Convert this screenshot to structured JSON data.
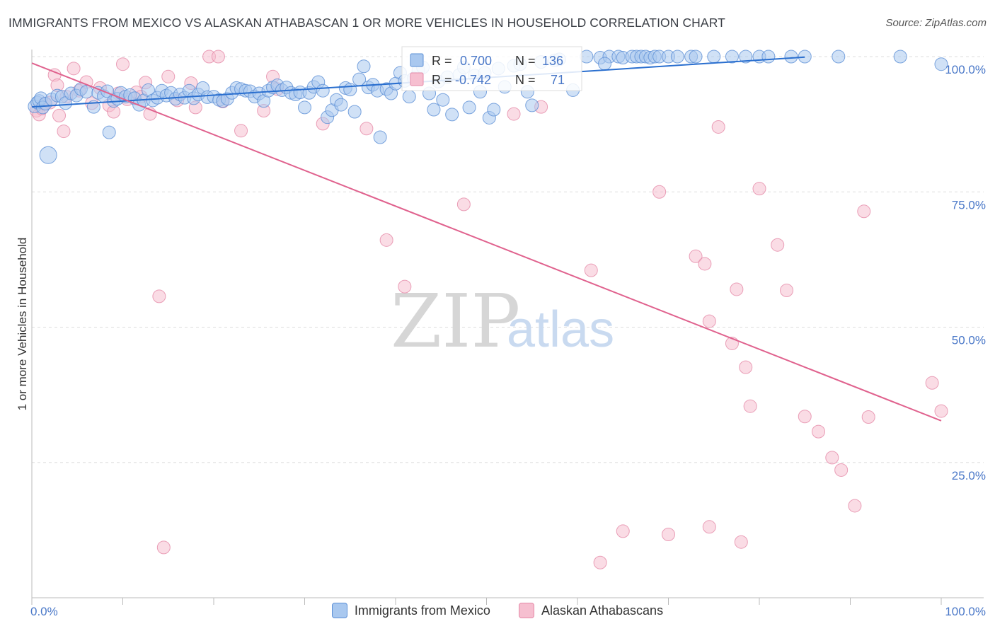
{
  "title": "IMMIGRANTS FROM MEXICO VS ALASKAN ATHABASCAN 1 OR MORE VEHICLES IN HOUSEHOLD CORRELATION CHART",
  "source": "Source: ZipAtlas.com",
  "watermark": {
    "zip": "ZIP",
    "atlas": "atlas"
  },
  "legend_box": {
    "r_label": "R =",
    "n_label": "N =",
    "rows": [
      {
        "r": "0.700",
        "n": "136"
      },
      {
        "r": "-0.742",
        "n": "71"
      }
    ]
  },
  "colors": {
    "blue_fill": "#a9c8ef",
    "blue_stroke": "#5b8fd6",
    "blue_line": "#2a6fcf",
    "pink_fill": "#f6bfd0",
    "pink_stroke": "#e58aa8",
    "pink_line": "#e0628e",
    "grid": "#dddddd",
    "tick_text": "#4a78c8"
  },
  "chart_data": {
    "type": "scatter",
    "title": "IMMIGRANTS FROM MEXICO VS ALASKAN ATHABASCAN 1 OR MORE VEHICLES IN HOUSEHOLD CORRELATION CHART",
    "xlabel": "",
    "ylabel": "1 or more Vehicles in Household",
    "xlim": [
      0,
      100
    ],
    "ylim": [
      0,
      100
    ],
    "x_tick_labels": [
      "0.0%",
      "100.0%"
    ],
    "y_ticks": [
      {
        "value": 25,
        "label": "25.0%"
      },
      {
        "value": 50,
        "label": "50.0%"
      },
      {
        "value": 75,
        "label": "75.0%"
      },
      {
        "value": 100,
        "label": "100.0%"
      }
    ],
    "legend_position": "top-center",
    "series": [
      {
        "name": "Immigrants from Mexico",
        "color": "blue",
        "r": 0.7,
        "n": 136,
        "trend": {
          "x": [
            0,
            85
          ],
          "y": [
            90.7,
            99.9
          ]
        },
        "points": [
          [
            0.3,
            90.8
          ],
          [
            0.6,
            91.5
          ],
          [
            0.8,
            91.8
          ],
          [
            1.0,
            92.3
          ],
          [
            1.2,
            90.6
          ],
          [
            1.5,
            91.3
          ],
          [
            1.8,
            81.8
          ],
          [
            2.2,
            92.1
          ],
          [
            2.8,
            92.8
          ],
          [
            3.3,
            92.6
          ],
          [
            3.7,
            91.4
          ],
          [
            4.3,
            93.2
          ],
          [
            4.9,
            92.8
          ],
          [
            5.4,
            94.0
          ],
          [
            6.0,
            93.5
          ],
          [
            6.8,
            90.7
          ],
          [
            7.3,
            93.3
          ],
          [
            7.9,
            92.7
          ],
          [
            8.3,
            93.6
          ],
          [
            8.5,
            86.0
          ],
          [
            9.0,
            91.8
          ],
          [
            9.4,
            92.2
          ],
          [
            9.8,
            93.3
          ],
          [
            10.3,
            92.6
          ],
          [
            10.8,
            92.9
          ],
          [
            11.3,
            92.3
          ],
          [
            11.8,
            91.1
          ],
          [
            12.3,
            91.9
          ],
          [
            12.8,
            93.8
          ],
          [
            13.3,
            91.9
          ],
          [
            13.8,
            92.4
          ],
          [
            14.3,
            93.7
          ],
          [
            14.8,
            92.8
          ],
          [
            15.3,
            93.3
          ],
          [
            15.8,
            92.2
          ],
          [
            16.3,
            93.0
          ],
          [
            16.8,
            92.4
          ],
          [
            17.3,
            93.7
          ],
          [
            17.8,
            92.3
          ],
          [
            18.3,
            93.0
          ],
          [
            18.8,
            94.2
          ],
          [
            19.3,
            92.5
          ],
          [
            20.0,
            92.6
          ],
          [
            20.6,
            92.0
          ],
          [
            21.0,
            91.8
          ],
          [
            21.5,
            92.2
          ],
          [
            22.0,
            93.3
          ],
          [
            22.5,
            94.2
          ],
          [
            23.0,
            94.0
          ],
          [
            23.5,
            93.7
          ],
          [
            24.0,
            93.6
          ],
          [
            24.5,
            92.6
          ],
          [
            25.0,
            93.2
          ],
          [
            25.5,
            91.8
          ],
          [
            26.0,
            93.7
          ],
          [
            26.5,
            94.3
          ],
          [
            27.0,
            94.7
          ],
          [
            27.5,
            93.8
          ],
          [
            28.0,
            94.3
          ],
          [
            28.5,
            93.3
          ],
          [
            29.0,
            93.0
          ],
          [
            29.5,
            93.4
          ],
          [
            30.0,
            90.6
          ],
          [
            30.5,
            93.3
          ],
          [
            31.0,
            94.4
          ],
          [
            31.5,
            95.3
          ],
          [
            32.0,
            93.7
          ],
          [
            32.5,
            88.8
          ],
          [
            33.0,
            90.1
          ],
          [
            33.5,
            92.0
          ],
          [
            34.0,
            91.1
          ],
          [
            34.5,
            94.2
          ],
          [
            35.0,
            93.9
          ],
          [
            35.5,
            89.8
          ],
          [
            36.0,
            95.8
          ],
          [
            36.5,
            98.2
          ],
          [
            37.0,
            94.3
          ],
          [
            37.5,
            94.8
          ],
          [
            38.0,
            93.7
          ],
          [
            38.3,
            85.1
          ],
          [
            39.0,
            94.0
          ],
          [
            39.5,
            93.2
          ],
          [
            40.0,
            95.0
          ],
          [
            40.5,
            97.0
          ],
          [
            41.0,
            95.5
          ],
          [
            41.5,
            92.6
          ],
          [
            42.0,
            96.0
          ],
          [
            42.5,
            97.5
          ],
          [
            43.0,
            98.0
          ],
          [
            43.7,
            93.2
          ],
          [
            44.2,
            90.2
          ],
          [
            44.7,
            95.4
          ],
          [
            45.2,
            92.0
          ],
          [
            45.7,
            96.2
          ],
          [
            46.2,
            89.3
          ],
          [
            47.0,
            96.6
          ],
          [
            47.5,
            98.0
          ],
          [
            48.1,
            90.6
          ],
          [
            48.7,
            96.5
          ],
          [
            49.3,
            93.5
          ],
          [
            49.8,
            97.0
          ],
          [
            50.3,
            88.7
          ],
          [
            50.8,
            90.2
          ],
          [
            51.3,
            97.8
          ],
          [
            52.0,
            94.4
          ],
          [
            53.0,
            98.3
          ],
          [
            53.7,
            98.6
          ],
          [
            54.5,
            93.5
          ],
          [
            55.0,
            91.0
          ],
          [
            56.0,
            99.0
          ],
          [
            57.5,
            99.3
          ],
          [
            58.0,
            99.5
          ],
          [
            59.5,
            93.8
          ],
          [
            61.0,
            100
          ],
          [
            62.5,
            99.8
          ],
          [
            63.5,
            100
          ],
          [
            64.5,
            100
          ],
          [
            65.0,
            99.8
          ],
          [
            66.0,
            100
          ],
          [
            66.5,
            100
          ],
          [
            67.0,
            100
          ],
          [
            67.5,
            100
          ],
          [
            68.0,
            99.8
          ],
          [
            68.5,
            100
          ],
          [
            69.0,
            100
          ],
          [
            70.0,
            100
          ],
          [
            71.0,
            100
          ],
          [
            72.5,
            100
          ],
          [
            73.0,
            100
          ],
          [
            75.0,
            100
          ],
          [
            77.0,
            100
          ],
          [
            78.5,
            100
          ],
          [
            80.0,
            100
          ],
          [
            81.0,
            100
          ],
          [
            83.5,
            100
          ],
          [
            85.0,
            100
          ],
          [
            88.7,
            100
          ],
          [
            95.5,
            100
          ],
          [
            100.0,
            98.6
          ],
          [
            63.0,
            98.7
          ]
        ]
      },
      {
        "name": "Alaskan Athabascans",
        "color": "pink",
        "r": -0.742,
        "n": 71,
        "trend": {
          "x": [
            0,
            100
          ],
          "y": [
            98.8,
            32.7
          ]
        },
        "points": [
          [
            0.5,
            90.0
          ],
          [
            0.8,
            89.3
          ],
          [
            1.1,
            90.4
          ],
          [
            1.4,
            91.3
          ],
          [
            2.0,
            91.5
          ],
          [
            2.5,
            96.6
          ],
          [
            2.8,
            94.7
          ],
          [
            3.0,
            89.1
          ],
          [
            3.5,
            86.2
          ],
          [
            3.8,
            92.6
          ],
          [
            4.6,
            97.8
          ],
          [
            5.2,
            93.7
          ],
          [
            6.0,
            95.3
          ],
          [
            6.6,
            91.4
          ],
          [
            7.5,
            94.2
          ],
          [
            8.5,
            91.0
          ],
          [
            9.0,
            89.8
          ],
          [
            9.5,
            93.2
          ],
          [
            10.0,
            98.6
          ],
          [
            10.5,
            92.1
          ],
          [
            11.5,
            93.4
          ],
          [
            12.0,
            92.6
          ],
          [
            12.5,
            95.2
          ],
          [
            13.0,
            89.4
          ],
          [
            14.0,
            55.7
          ],
          [
            14.5,
            9.3
          ],
          [
            15.0,
            96.3
          ],
          [
            16.0,
            91.9
          ],
          [
            17.5,
            95.1
          ],
          [
            18.0,
            90.6
          ],
          [
            21.0,
            91.7
          ],
          [
            23.0,
            86.3
          ],
          [
            25.5,
            90.0
          ],
          [
            26.5,
            96.3
          ],
          [
            27.0,
            94.0
          ],
          [
            32.0,
            87.6
          ],
          [
            36.8,
            86.7
          ],
          [
            39.0,
            66.1
          ],
          [
            41.0,
            57.5
          ],
          [
            47.5,
            72.7
          ],
          [
            53.0,
            89.4
          ],
          [
            56.0,
            90.7
          ],
          [
            61.5,
            60.5
          ],
          [
            62.5,
            6.5
          ],
          [
            65.0,
            12.3
          ],
          [
            69.0,
            75.0
          ],
          [
            70.0,
            11.7
          ],
          [
            73.0,
            63.1
          ],
          [
            74.0,
            61.7
          ],
          [
            74.5,
            51.1
          ],
          [
            74.5,
            13.1
          ],
          [
            75.5,
            87.0
          ],
          [
            77.0,
            47.0
          ],
          [
            77.5,
            57.0
          ],
          [
            78.0,
            10.3
          ],
          [
            78.5,
            42.6
          ],
          [
            79.0,
            35.4
          ],
          [
            80.0,
            75.6
          ],
          [
            82.0,
            65.2
          ],
          [
            83.0,
            56.8
          ],
          [
            85.0,
            33.5
          ],
          [
            86.5,
            30.7
          ],
          [
            88.0,
            25.9
          ],
          [
            89.0,
            23.6
          ],
          [
            90.5,
            17.0
          ],
          [
            91.5,
            71.4
          ],
          [
            92.0,
            33.4
          ],
          [
            99.0,
            39.7
          ],
          [
            100.0,
            34.5
          ],
          [
            19.5,
            100
          ],
          [
            20.5,
            100
          ]
        ]
      }
    ]
  },
  "bottom_legend": [
    {
      "label": "Immigrants from Mexico"
    },
    {
      "label": "Alaskan Athabascans"
    }
  ]
}
